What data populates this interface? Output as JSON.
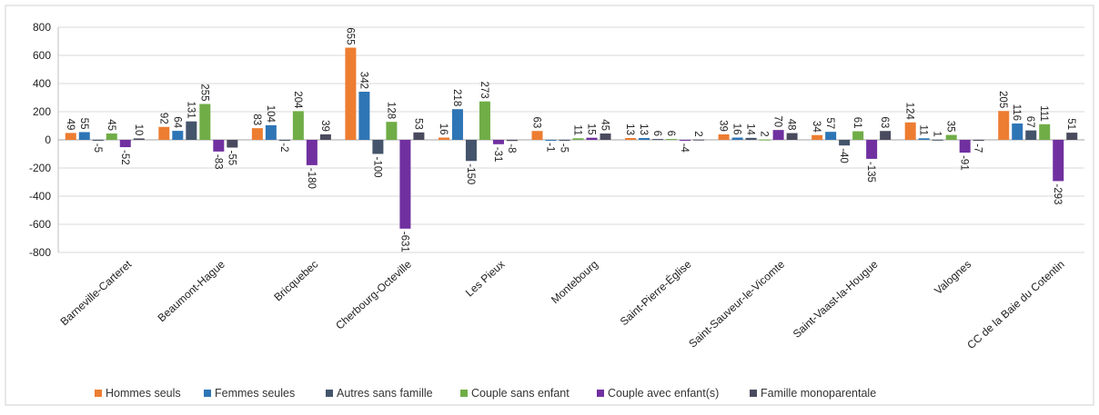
{
  "chart_data": {
    "type": "bar",
    "title": "",
    "xlabel": "",
    "ylabel": "",
    "ylim": [
      -800,
      800
    ],
    "yticks": [
      800,
      600,
      400,
      200,
      0,
      -200,
      -400,
      -600,
      -800
    ],
    "grid": true,
    "legend_position": "bottom",
    "categories": [
      "Barneville-Carteret",
      "Beaumont-Hague",
      "Bricquebec",
      "Cherbourg-Octeville",
      "Les Pieux",
      "Montebourg",
      "Saint-Pierre-Église",
      "Saint-Sauveur-le-Vicomte",
      "Saint-Vaast-la-Hougue",
      "Valognes",
      "CC de la Baie du Cotentin"
    ],
    "series": [
      {
        "name": "Hommes seuls",
        "color": "#ed7d31",
        "values": [
          49,
          92,
          83,
          655,
          16,
          63,
          13,
          39,
          34,
          124,
          205
        ]
      },
      {
        "name": "Femmes seules",
        "color": "#2e75b6",
        "values": [
          55,
          64,
          104,
          342,
          218,
          -1,
          13,
          16,
          57,
          11,
          116
        ]
      },
      {
        "name": "Autres sans famille",
        "color": "#44546a",
        "values": [
          -5,
          131,
          -2,
          -100,
          -150,
          -5,
          6,
          14,
          -40,
          1,
          67
        ]
      },
      {
        "name": "Couple sans enfant",
        "color": "#70ad47",
        "values": [
          45,
          255,
          204,
          128,
          273,
          11,
          6,
          2,
          61,
          35,
          111
        ]
      },
      {
        "name": "Couple avec enfant(s)",
        "color": "#7030a0",
        "values": [
          -52,
          -83,
          -180,
          -631,
          -31,
          15,
          -4,
          70,
          -135,
          -91,
          -293
        ]
      },
      {
        "name": "Famille monoparentale",
        "color": "#4a4a5e",
        "values": [
          10,
          -55,
          39,
          53,
          -8,
          45,
          2,
          48,
          63,
          -7,
          51
        ]
      }
    ]
  }
}
